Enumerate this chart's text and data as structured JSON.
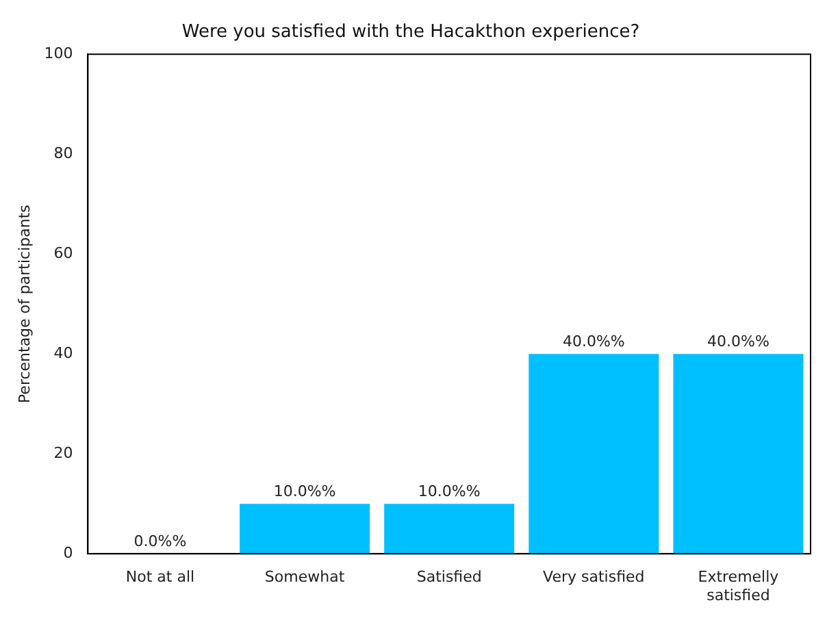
{
  "chart_data": {
    "type": "bar",
    "title": "Were you satisfied with the Hacakthon experience?",
    "ylabel": "Percentage of participants",
    "categories": [
      "Not at all",
      "Somewhat",
      "Satisfied",
      "Very satisfied",
      "Extremelly satisfied"
    ],
    "values": [
      0,
      10,
      10,
      40,
      40
    ],
    "value_labels": [
      "0.0%%",
      "10.0%%",
      "10.0%%",
      "40.0%%",
      "40.0%%"
    ],
    "color": "#00bfff",
    "ylim": [
      0,
      100
    ],
    "yticks": [
      0,
      20,
      40,
      60,
      80,
      100
    ],
    "grid": false,
    "legend": false
  }
}
